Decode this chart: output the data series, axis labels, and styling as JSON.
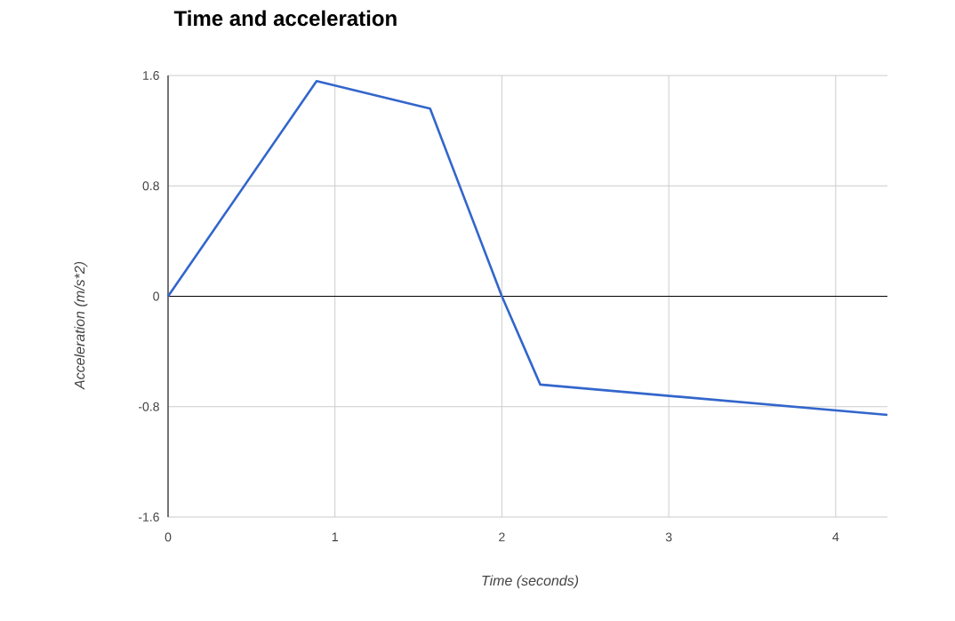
{
  "chart_data": {
    "type": "line",
    "title": "Time and acceleration",
    "xlabel": "Time (seconds)",
    "ylabel": "Acceleration (m/s*2)",
    "x": [
      0,
      0.89,
      1.57,
      2.0,
      2.23,
      4.31
    ],
    "series": [
      {
        "color": "#3366cc",
        "values": [
          0,
          1.56,
          1.36,
          0,
          -0.64,
          -0.86
        ]
      }
    ],
    "xlim": [
      0,
      4.31
    ],
    "ylim": [
      -1.6,
      1.6
    ],
    "xticks": [
      0,
      1,
      2,
      3,
      4
    ],
    "yticks": [
      -1.6,
      -0.8,
      0,
      0.8,
      1.6
    ],
    "grid": true,
    "marker": "none",
    "line_style": "solid",
    "ref_lines": [
      {
        "axis": "y",
        "value": 0,
        "color": "#000000"
      }
    ]
  }
}
